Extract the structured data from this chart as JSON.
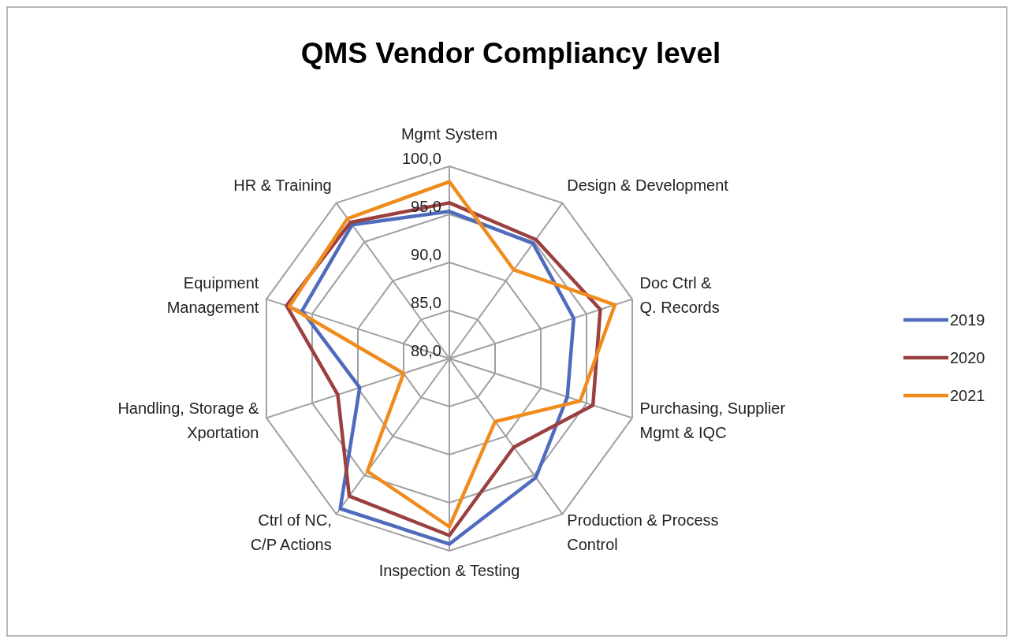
{
  "chart_data": {
    "type": "radar",
    "title": "QMS Vendor Compliancy level",
    "categories": [
      "Mgmt System",
      "Design & Development",
      "Doc Ctrl &\nQ. Records",
      "Purchasing, Supplier\nMgmt & IQC",
      "Production & Process\nControl",
      "Inspection & Testing",
      "Ctrl of NC,\nC/P Actions",
      "Handling, Storage &\nXportation",
      "Equipment\nManagement",
      "HR & Training"
    ],
    "series": [
      {
        "name": "2019",
        "color": "#4f6bbd",
        "values": [
          95.3,
          94.8,
          93.6,
          92.9,
          95.3,
          99.3,
          99.3,
          89.8,
          96.1,
          97.2
        ]
      },
      {
        "name": "2020",
        "color": "#9b4040",
        "values": [
          96.2,
          95.3,
          96.5,
          95.7,
          91.4,
          98.4,
          97.7,
          92.2,
          97.8,
          97.5
        ]
      },
      {
        "name": "2021",
        "color": "#f08c1e",
        "values": [
          98.4,
          91.4,
          98.1,
          94.3,
          88.1,
          97.5,
          94.5,
          85.0,
          97.5,
          98.0
        ]
      }
    ],
    "ylim": [
      80,
      100
    ],
    "yticks": [
      {
        "value": 80,
        "label": "80,0"
      },
      {
        "value": 85,
        "label": "85,0"
      },
      {
        "value": 90,
        "label": "90,0"
      },
      {
        "value": 95,
        "label": "95,0"
      },
      {
        "value": 100,
        "label": "100,0"
      }
    ],
    "grid": true,
    "legend": "right",
    "marker": "none",
    "line_style": "solid"
  }
}
